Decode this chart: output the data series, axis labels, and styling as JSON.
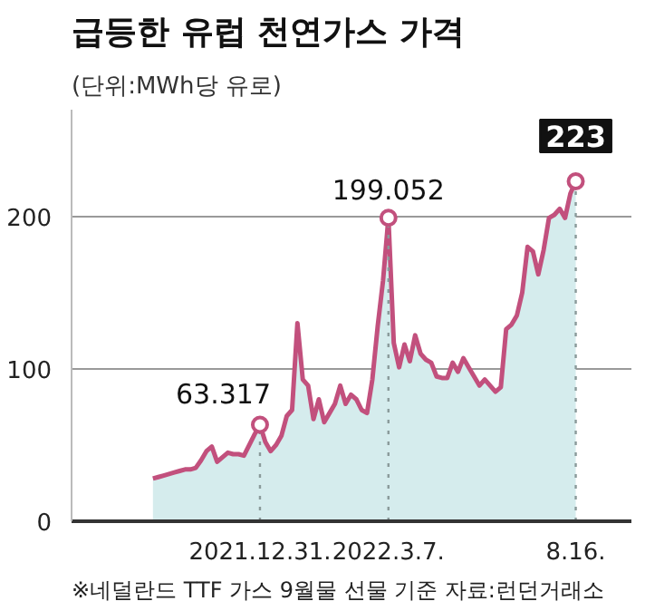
{
  "chart_data": {
    "type": "area",
    "title": "급등한 유럽 천연가스 가격",
    "subtitle": "(단위:MWh당 유로)",
    "categories": [
      null,
      null,
      null,
      null,
      null,
      null,
      null,
      null,
      null,
      null,
      null,
      null,
      null,
      null,
      null,
      null,
      null,
      null,
      null,
      null,
      "2021.12.31.",
      null,
      null,
      null,
      null,
      null,
      null,
      null,
      null,
      null,
      null,
      null,
      null,
      null,
      null,
      null,
      null,
      null,
      null,
      null,
      null,
      null,
      null,
      null,
      "2022.3.7.",
      null,
      null,
      null,
      null,
      null,
      null,
      null,
      null,
      null,
      null,
      null,
      null,
      null,
      null,
      null,
      null,
      null,
      null,
      null,
      null,
      null,
      null,
      null,
      null,
      null,
      null,
      null,
      null,
      null,
      null,
      null,
      null,
      null,
      null,
      "8.16."
    ],
    "series": [
      {
        "color": "#c2507d",
        "values": [
          28,
          29,
          30,
          31,
          32,
          33,
          34,
          34,
          35,
          40,
          46,
          49,
          39,
          42,
          45,
          44,
          44,
          43,
          50,
          57,
          63.317,
          52,
          46,
          50,
          56,
          69,
          73,
          130,
          93,
          89,
          67,
          80,
          65,
          71,
          77,
          89,
          77,
          83,
          80,
          73,
          71,
          93,
          128,
          158,
          199.052,
          117,
          101,
          116,
          105,
          122,
          110,
          106,
          104,
          95,
          94,
          94,
          104,
          98,
          107,
          101,
          95,
          89,
          93,
          89,
          85,
          88,
          126,
          129,
          135,
          150,
          180,
          177,
          162,
          178,
          199,
          201,
          205,
          199,
          215,
          223
        ]
      }
    ],
    "ylim": [
      0,
      270
    ],
    "yticks": [
      0,
      100,
      200
    ],
    "grid": "y",
    "ref_lines": [
      {
        "axis": "x",
        "value": "2021.12.31.",
        "color": "#8a9a9a",
        "line_style": "dotted"
      },
      {
        "axis": "x",
        "value": "2022.3.7.",
        "color": "#8a9a9a",
        "line_style": "dotted"
      },
      {
        "axis": "x",
        "value": "8.16.",
        "color": "#8a9a9a",
        "line_style": "dotted"
      }
    ],
    "annotations": [
      {
        "text": "63.317",
        "x": "2021.12.31.",
        "y": 63.317
      },
      {
        "text": "199.052",
        "x": "2022.3.7.",
        "y": 199.052
      },
      {
        "text": "223",
        "x": "8.16.",
        "y": 223
      },
      "※네덜란드 TTF 가스 9월물 선물 기준   자료:런던거래소"
    ]
  }
}
